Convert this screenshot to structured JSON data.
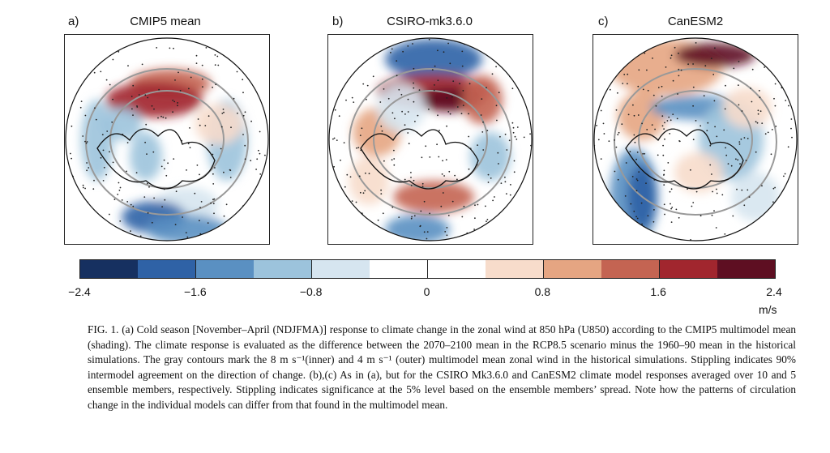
{
  "panels": [
    {
      "letter": "a)",
      "title": "CMIP5 mean"
    },
    {
      "letter": "b)",
      "title": "CSIRO-mk3.6.0"
    },
    {
      "letter": "c)",
      "title": "CanESM2"
    }
  ],
  "colorbar": {
    "colors": [
      "#163060",
      "#2f62a6",
      "#5a90c2",
      "#9cc3dc",
      "#d6e5f0",
      "#ffffff",
      "#ffffff",
      "#f7dccb",
      "#e5a582",
      "#c46452",
      "#a1262e",
      "#5e0f22"
    ],
    "tick_labels": [
      "−2.4",
      "−1.6",
      "−0.8",
      "0",
      "0.8",
      "1.6",
      "2.4"
    ],
    "range": [
      -2.4,
      2.4
    ],
    "units": "m/s"
  },
  "caption": "FIG. 1. (a) Cold season [November–April (NDJFMA)] response to climate change in the zonal wind at 850 hPa (U850) according to the CMIP5 multimodel mean (shading). The climate response is evaluated as the difference between the 2070–2100 mean in the RCP8.5 scenario minus the 1960–90 mean in the historical simulations. The gray contours mark the 8 m s⁻¹(inner) and 4 m s⁻¹ (outer) multimodel mean zonal wind in the historical simulations. Stippling indicates 90% intermodel agreement on the direction of change. (b),(c) As in (a), but for the CSIRO Mk3.6.0 and CanESM2 climate model responses averaged over 10 and 5 ensemble members, respectively. Stippling indicates significance at the 5% level based on the ensemble members’ spread. Note how the patterns of circulation change in the individual models can differ from that found in the multimodel mean."
}
